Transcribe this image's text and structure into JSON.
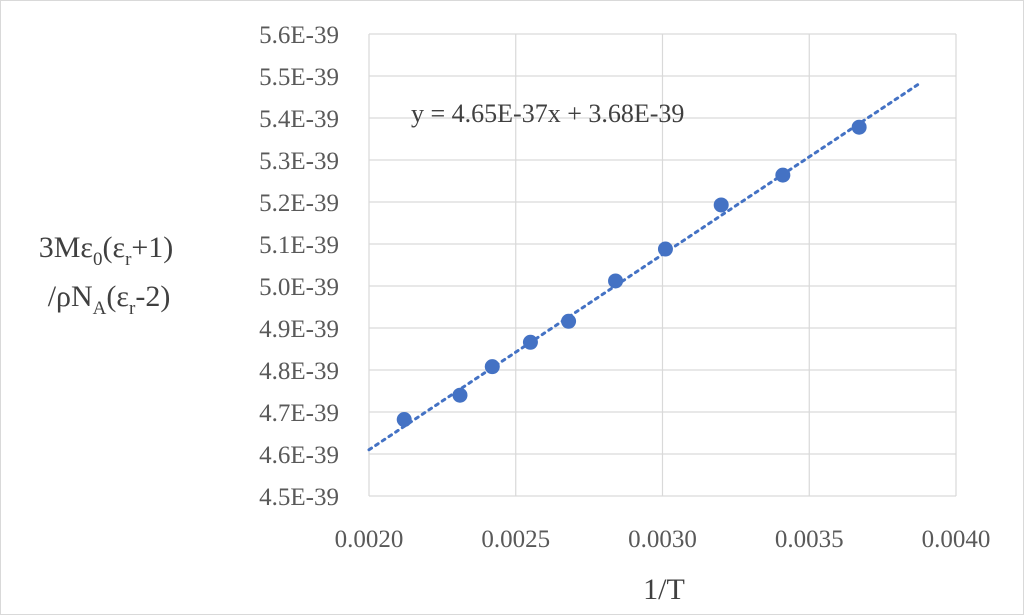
{
  "chart_data": {
    "type": "scatter",
    "xlabel": "1/T",
    "ylabel_line1": "3Mε",
    "ylabel_line1_sub0": "0",
    "ylabel_line1_mid": "(ε",
    "ylabel_line1_sub1": "r",
    "ylabel_line1_end": "+1)",
    "ylabel_line2": "/ρN",
    "ylabel_line2_sub0": "A",
    "ylabel_line2_mid": "(ε",
    "ylabel_line2_sub1": "r",
    "ylabel_line2_end": "-2)",
    "xlim": [
      0.002,
      0.004
    ],
    "ylim": [
      4.5e-39,
      5.6e-39
    ],
    "x_ticks": [
      0.002,
      0.0025,
      0.003,
      0.0035,
      0.004
    ],
    "x_tick_labels": [
      "0.0020",
      "0.0025",
      "0.0030",
      "0.0035",
      "0.0040"
    ],
    "y_ticks": [
      4.5e-39,
      4.6e-39,
      4.7e-39,
      4.8e-39,
      4.9e-39,
      5e-39,
      5.1e-39,
      5.2e-39,
      5.3e-39,
      5.4e-39,
      5.5e-39,
      5.6e-39
    ],
    "y_tick_labels": [
      "4.5E-39",
      "4.6E-39",
      "4.7E-39",
      "4.8E-39",
      "4.9E-39",
      "5.0E-39",
      "5.1E-39",
      "5.2E-39",
      "5.3E-39",
      "5.4E-39",
      "5.5E-39",
      "5.6E-39"
    ],
    "grid": true,
    "series": [
      {
        "x": [
          0.00212,
          0.00231,
          0.00242,
          0.00255,
          0.00268,
          0.00284,
          0.00301,
          0.0032,
          0.00341,
          0.00367
        ],
        "y": [
          4.682e-39,
          4.74e-39,
          4.808e-39,
          4.866e-39,
          4.916e-39,
          5.012e-39,
          5.088e-39,
          5.193e-39,
          5.264e-39,
          5.378e-39
        ],
        "color": "#4472c4"
      }
    ],
    "trendline": {
      "slope": 4.65e-37,
      "intercept": 3.68e-39,
      "x_range": [
        0.002,
        0.00388
      ],
      "style": "dotted",
      "color": "#4472c4",
      "equation": "y = 4.65E-37x + 3.68E-39"
    }
  }
}
